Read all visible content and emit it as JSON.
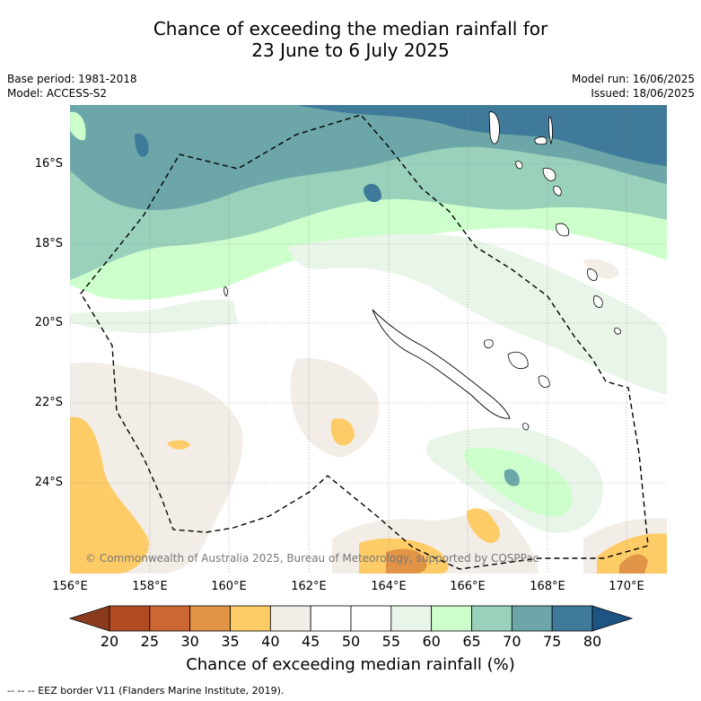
{
  "header": {
    "title_line1": "Chance of exceeding the median rainfall for",
    "title_line2": "23 June to 6 July 2025",
    "base_period": "Base period: 1981-2018",
    "model": "Model: ACCESS-S2",
    "model_run": "Model run: 16/06/2025",
    "issued": "Issued: 18/06/2025"
  },
  "map": {
    "lat_labels": [
      "16°S",
      "18°S",
      "20°S",
      "22°S",
      "24°S"
    ],
    "lon_labels": [
      "156°E",
      "158°E",
      "160°E",
      "162°E",
      "164°E",
      "166°E",
      "168°E",
      "170°E"
    ],
    "copyright": "© Commonwealth of Australia 2025, Bureau of Meteorology, supported by COSPPac"
  },
  "colorbar": {
    "ticks": [
      "20",
      "25",
      "30",
      "35",
      "40",
      "45",
      "50",
      "55",
      "60",
      "65",
      "70",
      "75",
      "80"
    ],
    "colors": [
      "#8b3a1e",
      "#b24a22",
      "#cc6633",
      "#e19346",
      "#fecc66",
      "#f2ede7",
      "#ffffff",
      "#ffffff",
      "#e9f5e9",
      "#ccffcc",
      "#99d1bb",
      "#6ca6a8",
      "#3f7a9a",
      "#1e5484"
    ],
    "label": "Chance of exceeding median rainfall (%)"
  },
  "footer": {
    "legend": "-- -- -- EEZ border V11 (Flanders Marine Institute, 2019)."
  }
}
